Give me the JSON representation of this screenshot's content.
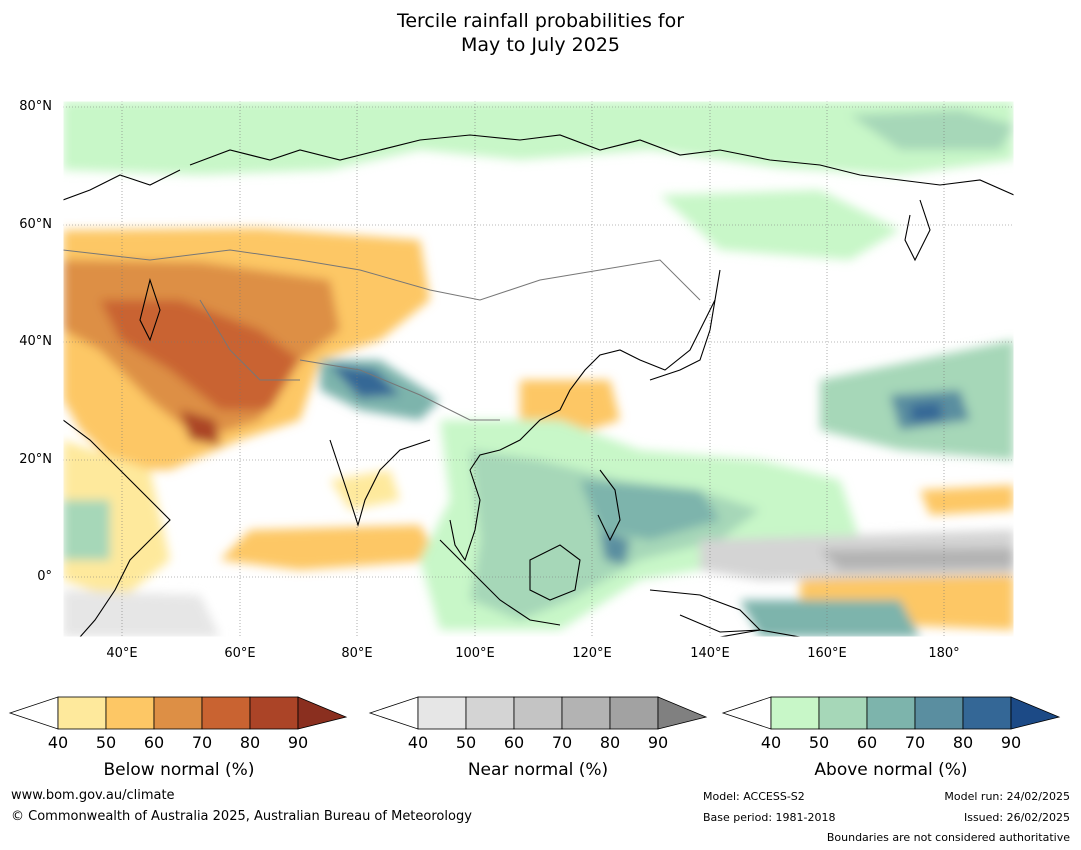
{
  "title_line1": "Tercile rainfall probabilities for",
  "title_line2": "May to July 2025",
  "map": {
    "lat_labels": [
      "80°N",
      "60°N",
      "40°N",
      "20°N",
      "0°"
    ],
    "lon_labels": [
      "40°E",
      "60°E",
      "80°E",
      "100°E",
      "120°E",
      "140°E",
      "160°E",
      "180°"
    ],
    "lon_range_deg": [
      30,
      192
    ],
    "lat_range_deg": [
      -10,
      81
    ]
  },
  "colorbars": [
    {
      "label": "Below normal (%)",
      "ticks": [
        "40",
        "50",
        "60",
        "70",
        "80",
        "90"
      ],
      "colors": [
        "#ffffff",
        "#fee99c",
        "#fdc765",
        "#dd8f45",
        "#c96331",
        "#ab4427",
        "#8a2f1f"
      ]
    },
    {
      "label": "Near normal (%)",
      "ticks": [
        "40",
        "50",
        "60",
        "70",
        "80",
        "90"
      ],
      "colors": [
        "#ffffff",
        "#e6e6e6",
        "#d4d4d4",
        "#c4c4c4",
        "#b3b3b3",
        "#a2a2a2",
        "#808080"
      ]
    },
    {
      "label": "Above normal (%)",
      "ticks": [
        "40",
        "50",
        "60",
        "70",
        "80",
        "90"
      ],
      "colors": [
        "#ffffff",
        "#c8f7c8",
        "#a6d7b8",
        "#7db4ac",
        "#5a8ea0",
        "#346796",
        "#1c4a86"
      ]
    }
  ],
  "footer": {
    "website": "www.bom.gov.au/climate",
    "copyright": "© Commonwealth of Australia 2025, Australian Bureau of Meteorology",
    "model": "Model: ACCESS-S2",
    "base_period": "Base period: 1981-2018",
    "model_run": "Model run: 24/02/2025",
    "issued": "Issued: 26/02/2025",
    "disclaimer": "Boundaries are not considered authoritative"
  }
}
